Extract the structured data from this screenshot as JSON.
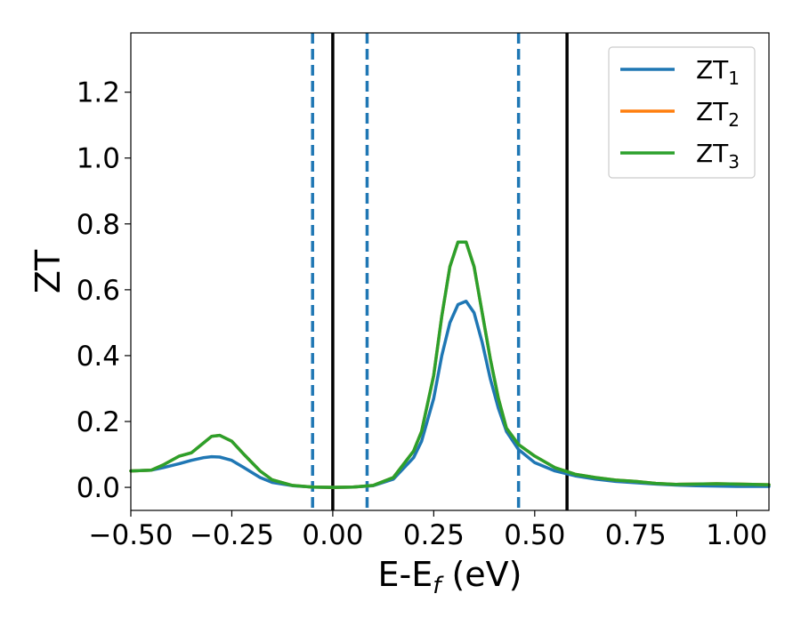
{
  "chart_data": {
    "type": "line",
    "title": "",
    "xlabel": "E-E",
    "xlabel_sub": "f",
    "xlabel_suffix": " (eV)",
    "ylabel": "ZT",
    "xlim": [
      -0.5,
      1.08
    ],
    "ylim": [
      -0.07,
      1.38
    ],
    "xticks": [
      -0.5,
      -0.25,
      0.0,
      0.25,
      0.5,
      0.75,
      1.0
    ],
    "xtick_labels": [
      "−0.50",
      "−0.25",
      "0.00",
      "0.25",
      "0.50",
      "0.75",
      "1.00"
    ],
    "yticks": [
      0.0,
      0.2,
      0.4,
      0.6,
      0.8,
      1.0,
      1.2
    ],
    "ytick_labels": [
      "0.0",
      "0.2",
      "0.4",
      "0.6",
      "0.8",
      "1.0",
      "1.2"
    ],
    "grid": false,
    "legend_position": "upper-right",
    "vlines_solid": [
      0.0,
      0.58
    ],
    "vlines_dashed": [
      -0.05,
      0.085,
      0.46
    ],
    "vline_solid_color": "#000000",
    "vline_dashed_color": "#1f77b4",
    "x": [
      -0.5,
      -0.45,
      -0.42,
      -0.38,
      -0.35,
      -0.32,
      -0.3,
      -0.28,
      -0.25,
      -0.22,
      -0.18,
      -0.15,
      -0.1,
      -0.05,
      0.0,
      0.05,
      0.1,
      0.15,
      0.2,
      0.22,
      0.25,
      0.27,
      0.29,
      0.31,
      0.33,
      0.35,
      0.37,
      0.39,
      0.41,
      0.43,
      0.46,
      0.5,
      0.55,
      0.6,
      0.65,
      0.7,
      0.75,
      0.8,
      0.85,
      0.9,
      0.95,
      1.0,
      1.08
    ],
    "series": [
      {
        "name": "ZT",
        "name_sub": "1",
        "color": "#1f77b4",
        "values": [
          0.05,
          0.052,
          0.06,
          0.072,
          0.082,
          0.09,
          0.093,
          0.092,
          0.082,
          0.06,
          0.03,
          0.015,
          0.005,
          0.001,
          0.0,
          0.001,
          0.005,
          0.025,
          0.09,
          0.14,
          0.27,
          0.4,
          0.5,
          0.555,
          0.565,
          0.53,
          0.44,
          0.33,
          0.24,
          0.17,
          0.115,
          0.075,
          0.05,
          0.035,
          0.025,
          0.018,
          0.014,
          0.01,
          0.007,
          0.005,
          0.004,
          0.003,
          0.003
        ]
      },
      {
        "name": "ZT",
        "name_sub": "2",
        "color": "#ff7f0e",
        "values": [
          0.05,
          0.052,
          0.068,
          0.095,
          0.105,
          0.135,
          0.155,
          0.158,
          0.14,
          0.1,
          0.05,
          0.023,
          0.006,
          0.001,
          0.0,
          0.001,
          0.006,
          0.03,
          0.11,
          0.17,
          0.34,
          0.52,
          0.67,
          0.745,
          0.745,
          0.67,
          0.53,
          0.39,
          0.27,
          0.18,
          0.13,
          0.095,
          0.06,
          0.04,
          0.03,
          0.022,
          0.018,
          0.012,
          0.009,
          0.01,
          0.011,
          0.01,
          0.008
        ]
      },
      {
        "name": "ZT",
        "name_sub": "3",
        "color": "#2ca02c",
        "values": [
          0.05,
          0.052,
          0.068,
          0.095,
          0.105,
          0.135,
          0.155,
          0.158,
          0.14,
          0.1,
          0.05,
          0.023,
          0.006,
          0.001,
          0.0,
          0.001,
          0.006,
          0.03,
          0.11,
          0.17,
          0.34,
          0.52,
          0.67,
          0.745,
          0.745,
          0.67,
          0.53,
          0.39,
          0.27,
          0.18,
          0.13,
          0.095,
          0.06,
          0.04,
          0.03,
          0.022,
          0.018,
          0.012,
          0.009,
          0.01,
          0.011,
          0.01,
          0.008
        ]
      }
    ]
  }
}
